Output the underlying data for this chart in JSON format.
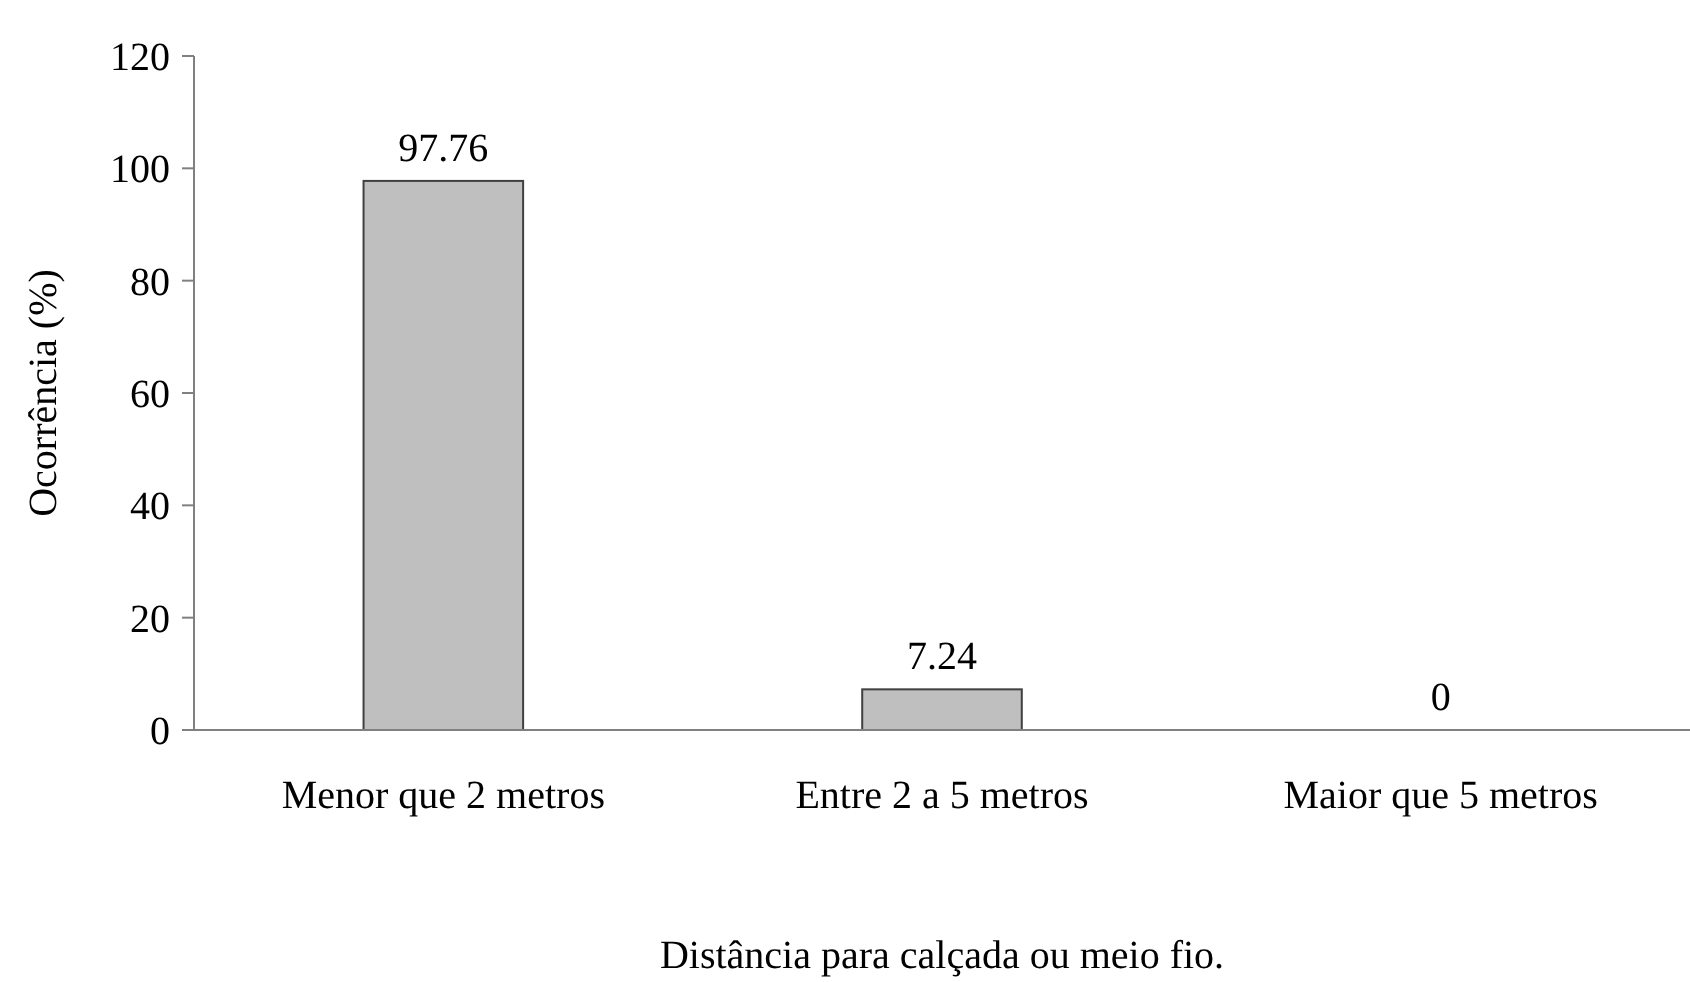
{
  "chart_data": {
    "type": "bar",
    "xlabel": "Distância para calçada ou meio fio.",
    "ylabel": "Ocorrência (%)",
    "categories": [
      "Menor que 2 metros",
      "Entre 2 a 5 metros",
      "Maior que 5 metros"
    ],
    "values": [
      97.76,
      7.24,
      0
    ],
    "color": "#bfbfbf",
    "data_labels": true,
    "ylim": [
      0,
      120
    ],
    "yticks": [
      0,
      20,
      40,
      60,
      80,
      100,
      120
    ],
    "grid": false
  }
}
